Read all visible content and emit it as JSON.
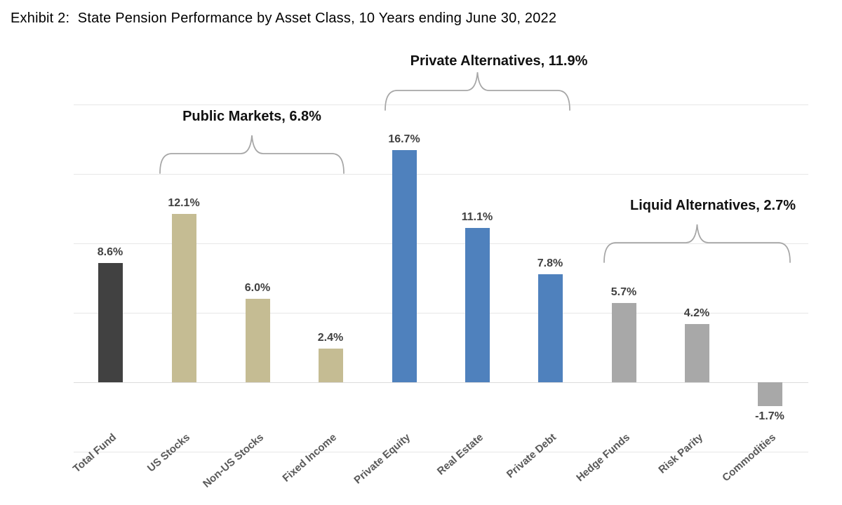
{
  "title": "Exhibit 2:  State Pension Performance by Asset Class, 10 Years ending June 30, 2022",
  "chart_data": {
    "type": "bar",
    "title": "State Pension Performance by Asset Class, 10 Years ending June 30, 2022",
    "xlabel": "",
    "ylabel": "",
    "ylim": [
      -5,
      20
    ],
    "grid": true,
    "legend_position": "none",
    "categories": [
      "Total Fund",
      "US Stocks",
      "Non-US Stocks",
      "Fixed Income",
      "Private Equity",
      "Real Estate",
      "Private Debt",
      "Hedge Funds",
      "Risk Parity",
      "Commodities"
    ],
    "values": [
      8.6,
      12.1,
      6.0,
      2.4,
      16.7,
      11.1,
      7.8,
      5.7,
      4.2,
      -1.7
    ],
    "value_labels": [
      "8.6%",
      "12.1%",
      "6.0%",
      "2.4%",
      "16.7%",
      "11.1%",
      "7.8%",
      "5.7%",
      "4.2%",
      "-1.7%"
    ],
    "bar_colors": [
      "#414141",
      "#c5bc93",
      "#c5bc93",
      "#c5bc93",
      "#4f81bd",
      "#4f81bd",
      "#4f81bd",
      "#a8a8a8",
      "#a8a8a8",
      "#a8a8a8"
    ],
    "gridline_values": [
      20,
      15,
      10,
      5,
      0,
      -5
    ],
    "groups": [
      {
        "label": "Public Markets, 6.8%",
        "value": "6.8%",
        "members": [
          "US Stocks",
          "Non-US Stocks",
          "Fixed Income"
        ]
      },
      {
        "label": "Private Alternatives, 11.9%",
        "value": "11.9%",
        "members": [
          "Private Equity",
          "Real Estate",
          "Private Debt"
        ]
      },
      {
        "label": "Liquid Alternatives, 2.7%",
        "value": "2.7%",
        "members": [
          "Hedge Funds",
          "Risk Parity",
          "Commodities"
        ]
      }
    ],
    "colors": {
      "total_fund_bar": "#414141",
      "public_markets_bar": "#c5bc93",
      "private_alternatives_bar": "#4f81bd",
      "liquid_alternatives_bar": "#a8a8a8",
      "value_label_text": "#404040",
      "category_label_text": "#595959",
      "gridline": "#e7e7e7",
      "brace": "#a6a6a6"
    }
  }
}
